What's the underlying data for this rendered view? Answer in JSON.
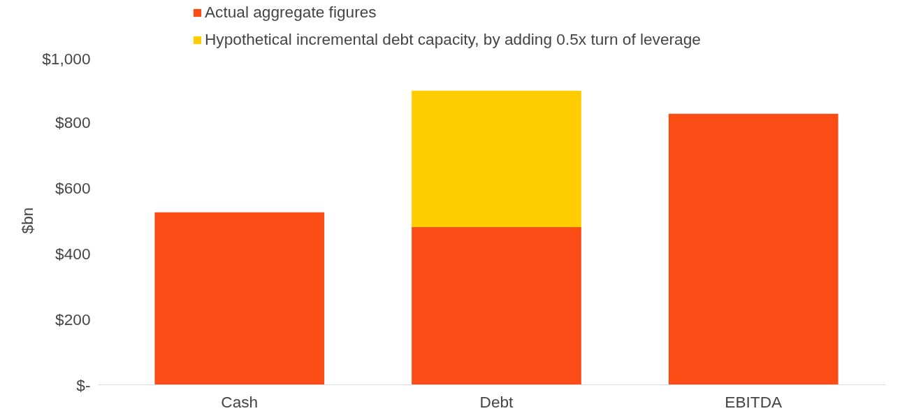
{
  "chart_data": {
    "type": "bar",
    "stacked": true,
    "ylabel": "$bn",
    "categories": [
      "Cash",
      "Debt",
      "EBITDA"
    ],
    "series": [
      {
        "name": "Actual aggregate figures",
        "color": "#fc4c16",
        "values": [
          525,
          480,
          825
        ]
      },
      {
        "name": "Hypothetical incremental debt capacity, by adding 0.5x turn of leverage",
        "color": "#ffcc00",
        "values": [
          null,
          415,
          null
        ]
      }
    ],
    "ylim": [
      0,
      1000
    ],
    "yticks": [
      {
        "value": 0,
        "label": "$-"
      },
      {
        "value": 200,
        "label": "$200"
      },
      {
        "value": 400,
        "label": "$400"
      },
      {
        "value": 600,
        "label": "$600"
      },
      {
        "value": 800,
        "label": "$800"
      },
      {
        "value": 1000,
        "label": "$1,000"
      }
    ],
    "grid": false,
    "legend": "top"
  }
}
